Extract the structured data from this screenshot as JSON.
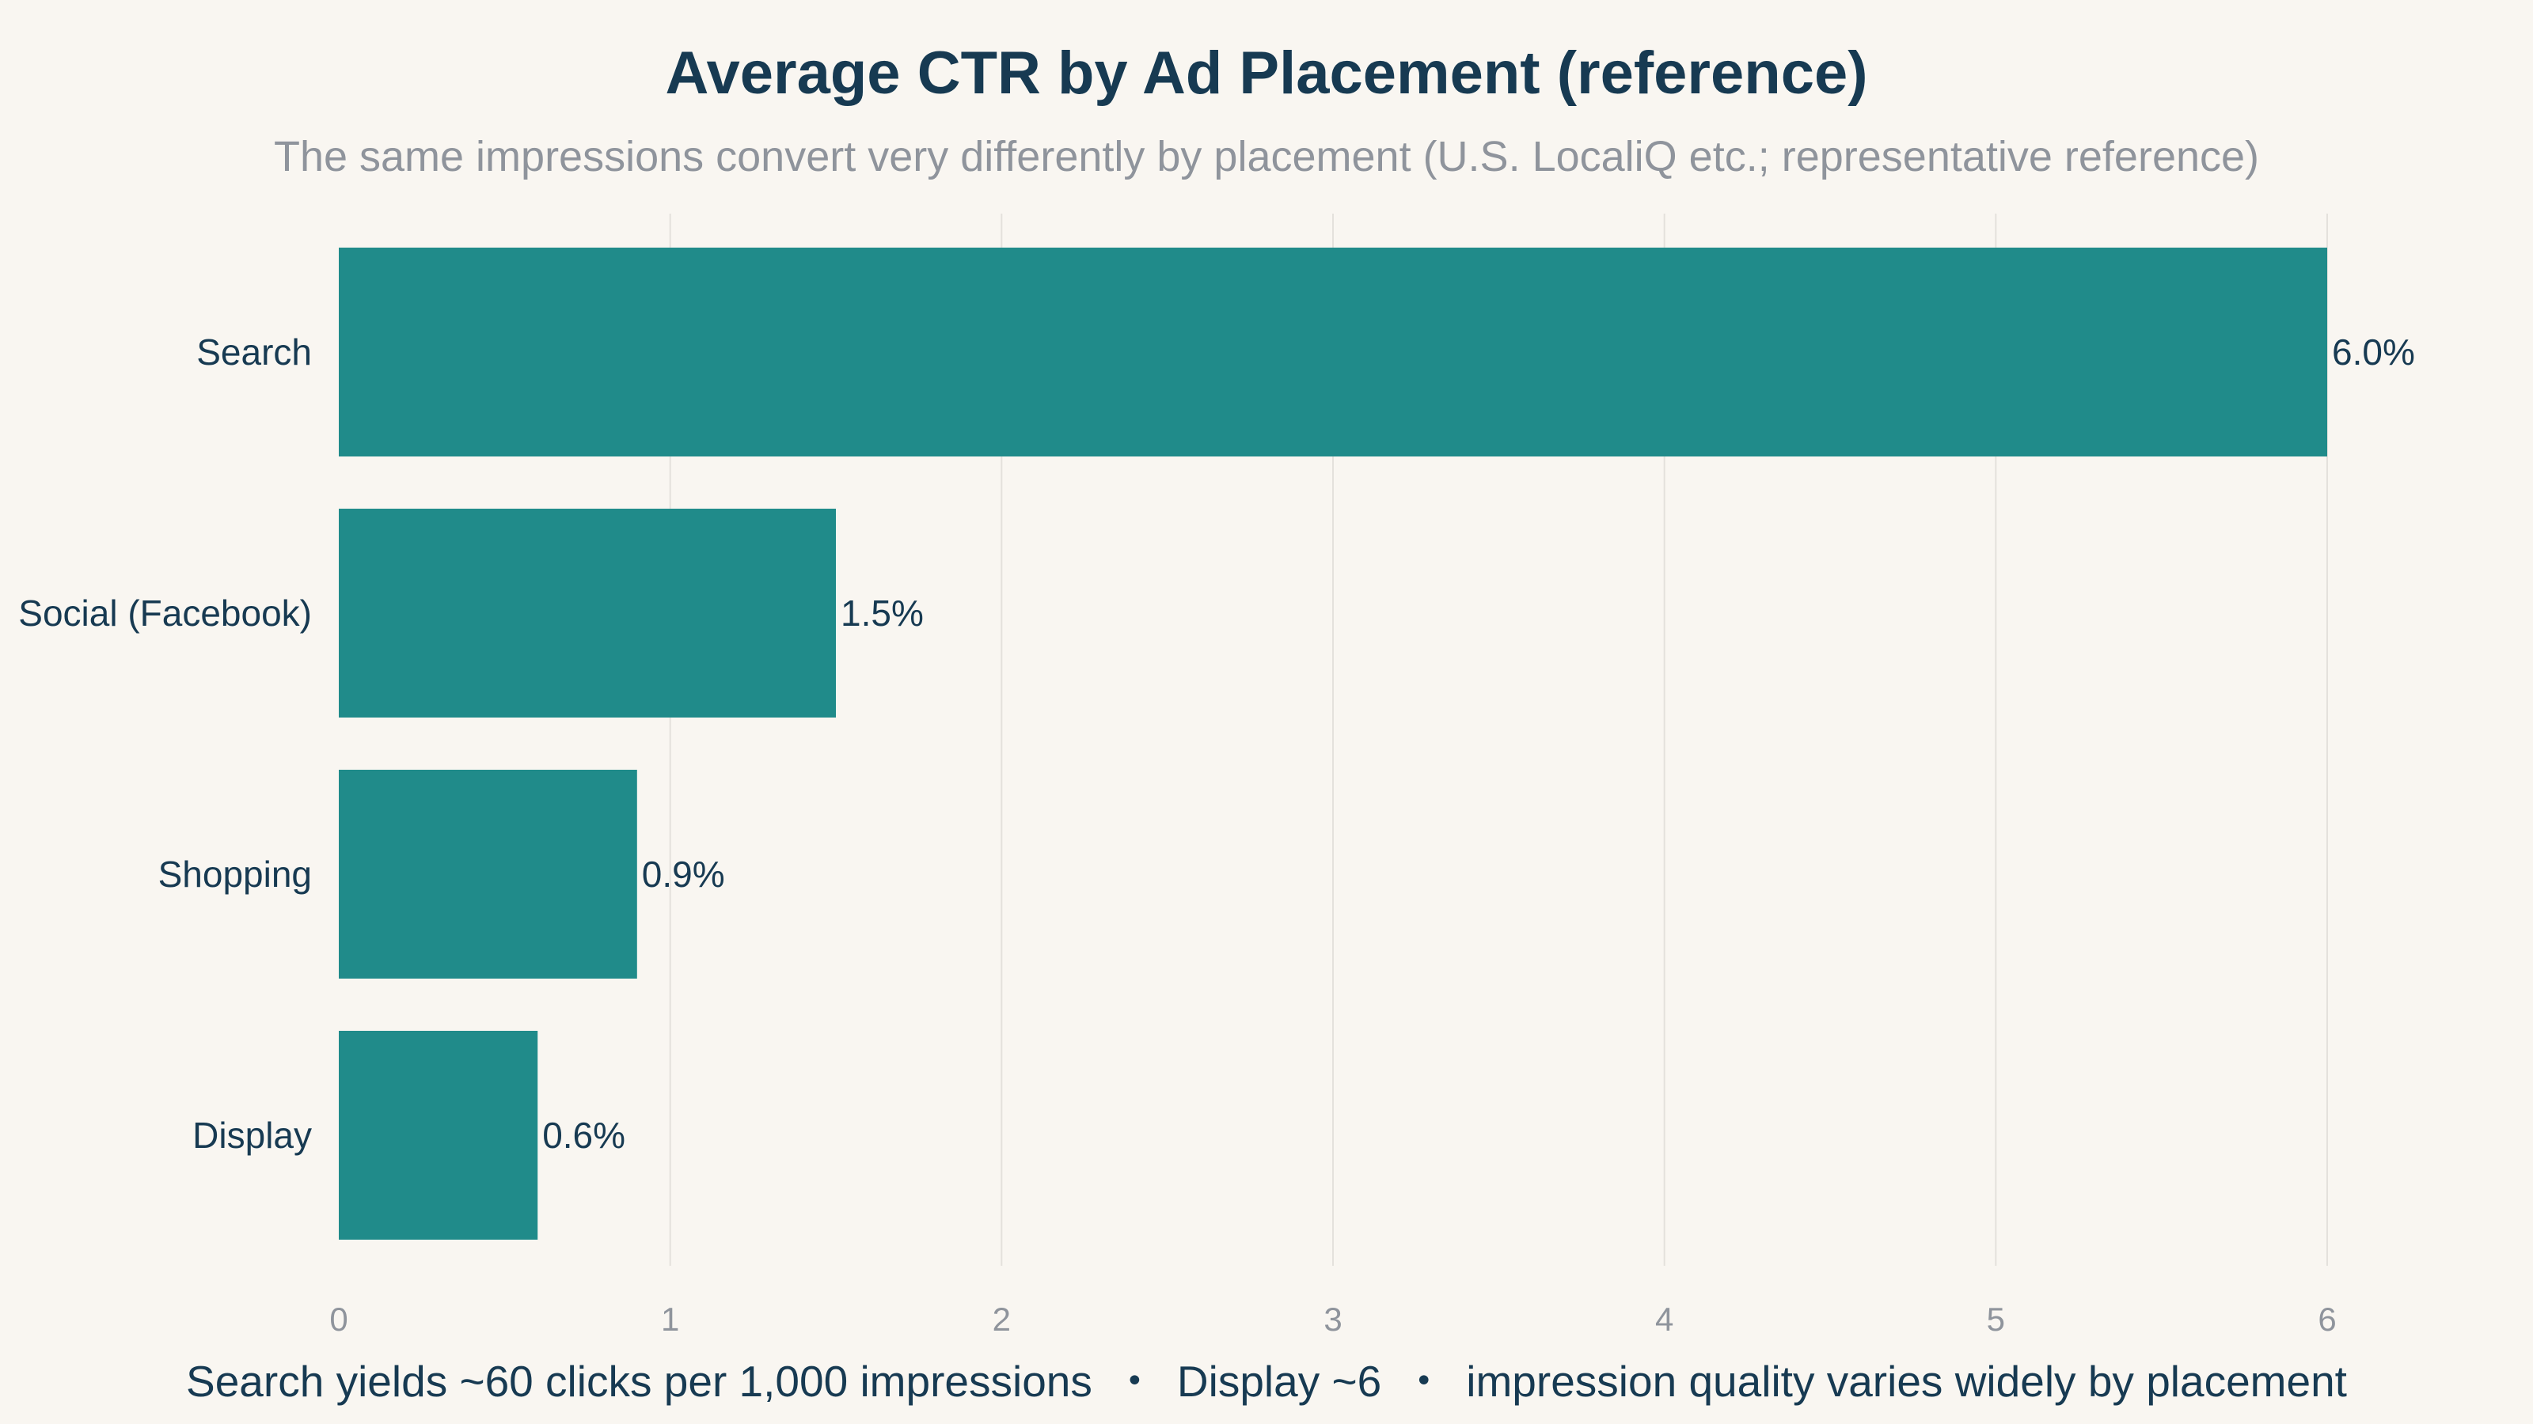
{
  "chart_data": {
    "type": "bar",
    "orientation": "horizontal",
    "title": "Average CTR by Ad Placement (reference)",
    "subtitle": "The same impressions convert very differently by placement (U.S. LocaliQ etc.; representative reference)",
    "categories": [
      "Search",
      "Social (Facebook)",
      "Shopping",
      "Display"
    ],
    "values": [
      6.0,
      1.5,
      0.9,
      0.6
    ],
    "value_labels": [
      "6.0%",
      "1.5%",
      "0.9%",
      "0.6%"
    ],
    "xlim": [
      0,
      6
    ],
    "xticks": [
      "0",
      "1",
      "2",
      "3",
      "4",
      "5",
      "6"
    ],
    "xlabel": "",
    "ylabel": "",
    "grid": "vertical",
    "legend": "none",
    "bar_color": "#208b8a"
  },
  "footnote": {
    "part1": "Search yields ~60 clicks per 1,000 impressions",
    "part2": "Display ~6",
    "part3": "impression quality varies widely by placement",
    "separator": "・"
  }
}
